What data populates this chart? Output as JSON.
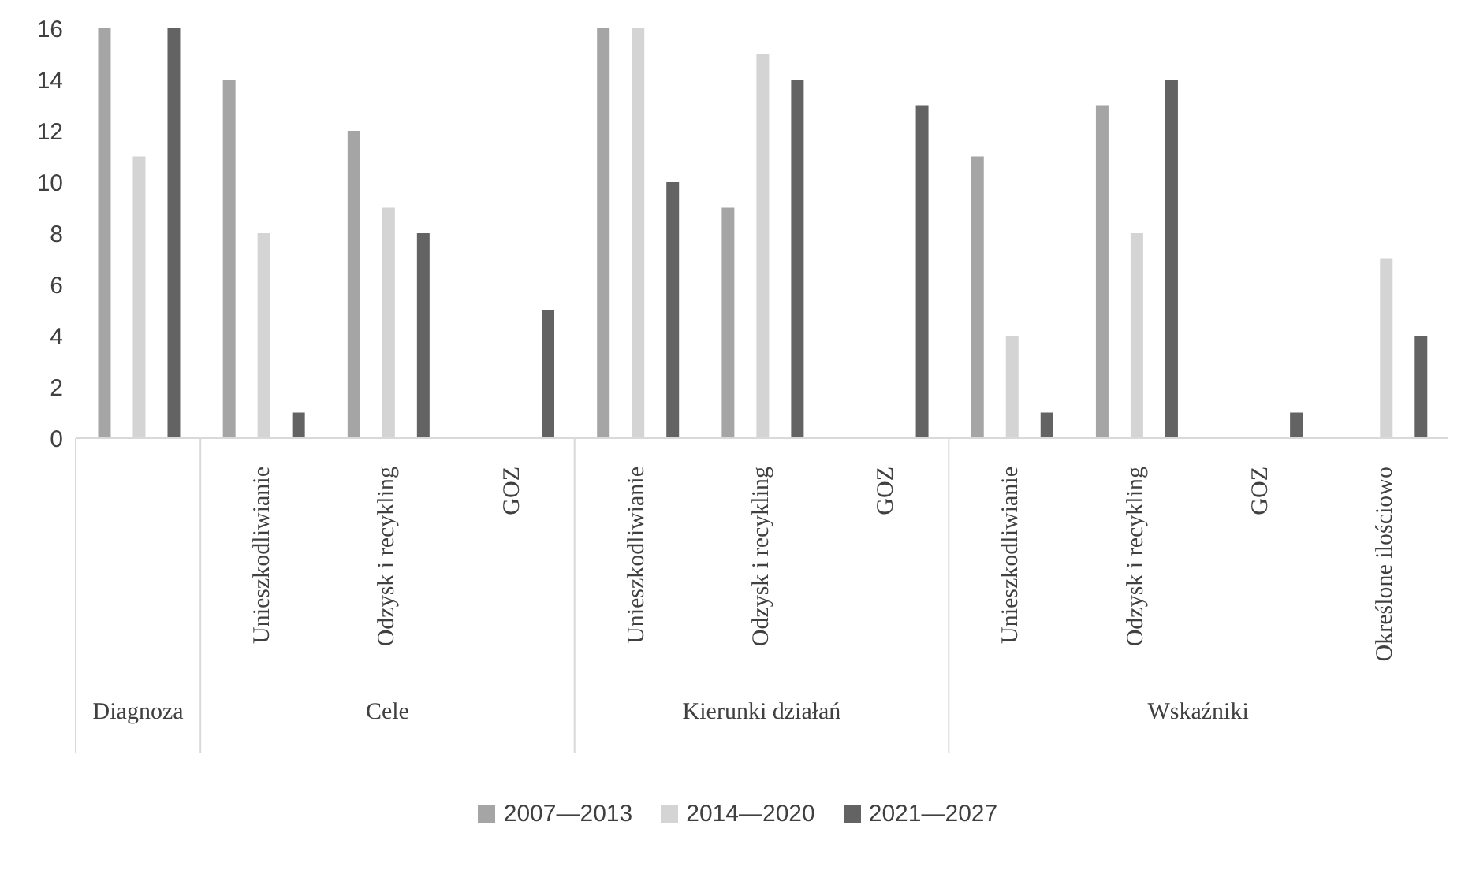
{
  "chart_data": {
    "type": "bar",
    "categories": [
      null,
      "Unieszkodliwianie",
      "Odzysk i recykling",
      "GOZ",
      "Unieszkodliwianie",
      "Odzysk i recykling",
      "GOZ",
      "Unieszkodliwianie",
      "Odzysk i recykling",
      "GOZ",
      "Określone ilościowo"
    ],
    "series": [
      {
        "name": "2007—2013",
        "color": "#a5a5a5",
        "values": [
          16,
          14,
          12,
          0,
          16,
          9,
          0,
          11,
          13,
          0,
          0
        ]
      },
      {
        "name": "2014—2020",
        "color": "#d4d4d4",
        "values": [
          11,
          8,
          9,
          0,
          16,
          15,
          0,
          4,
          8,
          0,
          7
        ]
      },
      {
        "name": "2021—2027",
        "color": "#636363",
        "values": [
          16,
          1,
          8,
          5,
          10,
          14,
          13,
          1,
          14,
          1,
          4
        ]
      }
    ],
    "annotations": [
      "Diagnoza",
      "Cele",
      "Kierunki działań",
      "Wskaźniki"
    ],
    "ylim": [
      0,
      16
    ],
    "yticks": [
      0,
      2,
      4,
      6,
      8,
      10,
      12,
      14,
      16
    ],
    "grid": false,
    "legend": "bottom"
  }
}
